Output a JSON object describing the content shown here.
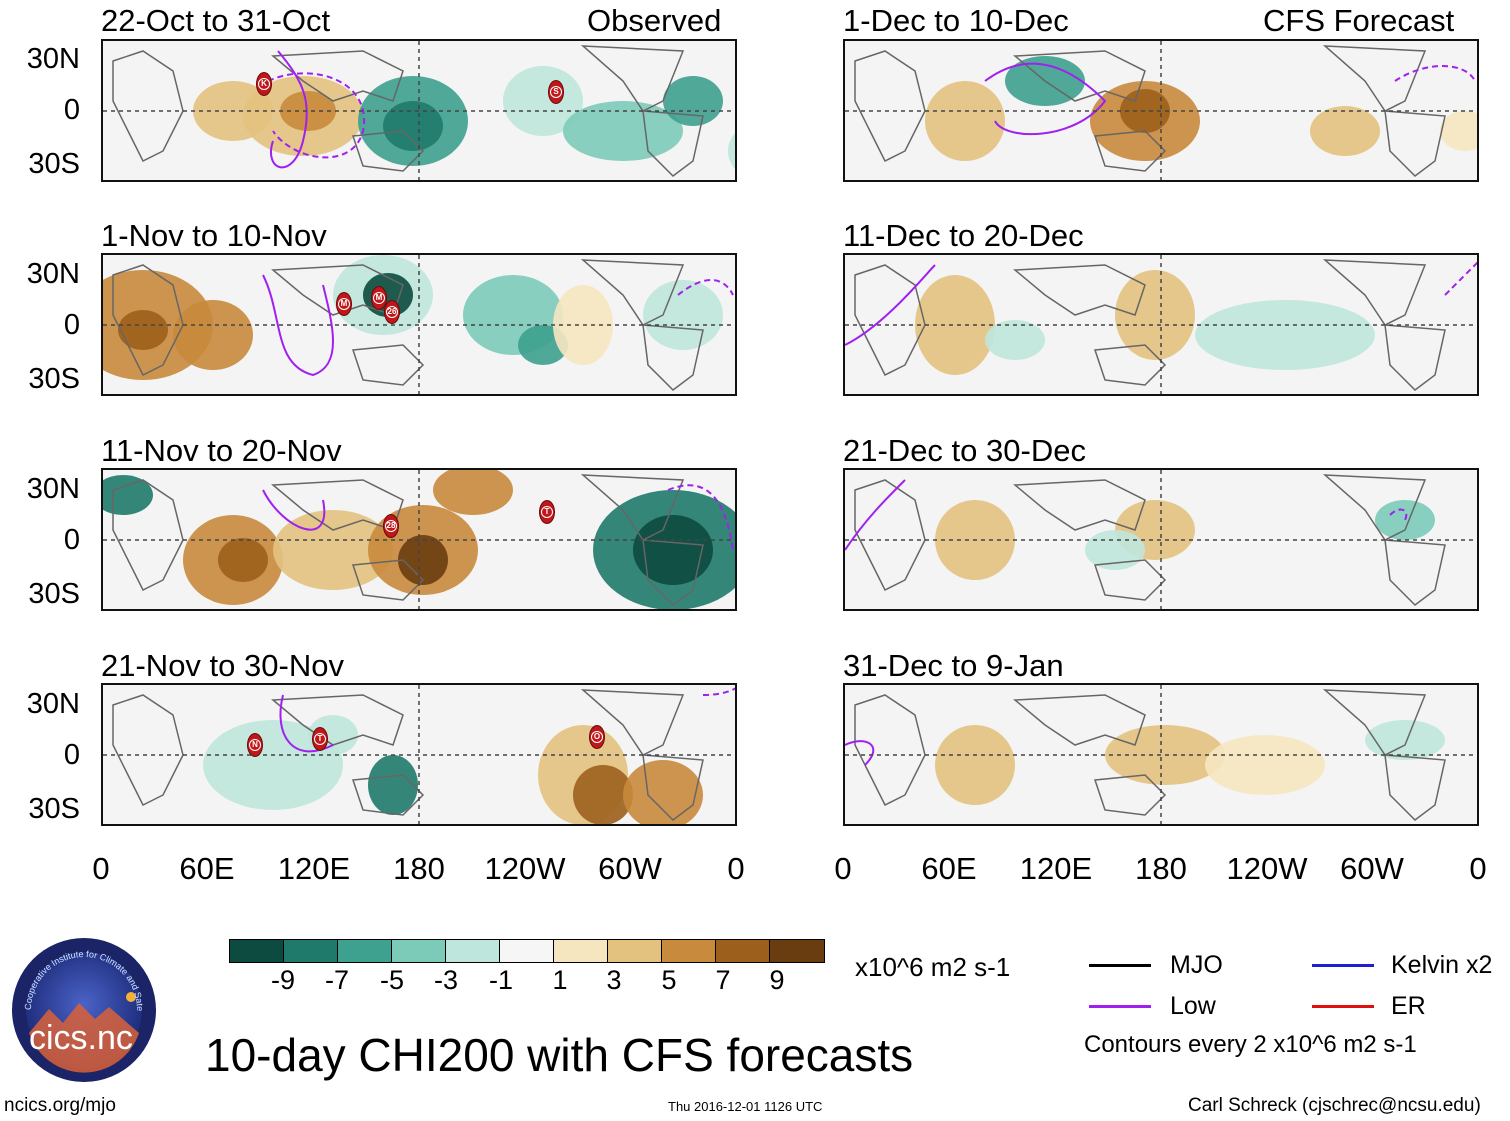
{
  "observed_label": "Observed",
  "forecast_label": "CFS Forecast",
  "lat_labels": [
    "30N",
    "0",
    "30S"
  ],
  "lon_labels": [
    "0",
    "60E",
    "120E",
    "180",
    "120W",
    "60W",
    "0"
  ],
  "panels_left": [
    {
      "title": "22-Oct to 31-Oct",
      "storms": [
        "K",
        "S"
      ]
    },
    {
      "title": "1-Nov to 10-Nov",
      "storms": [
        "M",
        "M",
        "26"
      ]
    },
    {
      "title": "11-Nov to 20-Nov",
      "storms": [
        "28",
        "T"
      ]
    },
    {
      "title": "21-Nov to 30-Nov",
      "storms": [
        "N",
        "T",
        "O"
      ]
    }
  ],
  "panels_right": [
    {
      "title": "1-Dec to 10-Dec"
    },
    {
      "title": "11-Dec to 20-Dec"
    },
    {
      "title": "21-Dec to 30-Dec"
    },
    {
      "title": "31-Dec to 9-Jan"
    }
  ],
  "colorbar": {
    "colors": [
      "#0d4a3f",
      "#1f7a6b",
      "#3ea08e",
      "#7ccbb9",
      "#bfe6dc",
      "#f6f6f6",
      "#f6e6c0",
      "#e3c27f",
      "#c88a3c",
      "#9c5f1c",
      "#6a3d10"
    ],
    "ticks": [
      "-9",
      "-7",
      "-5",
      "-3",
      "-1",
      "1",
      "3",
      "5",
      "7",
      "9"
    ],
    "unit": "x10^6 m2 s-1"
  },
  "legend": {
    "mjo": {
      "label": "MJO",
      "color": "#000000"
    },
    "low": {
      "label": "Low",
      "color": "#a020f0"
    },
    "kelvin": {
      "label": "Kelvin x2",
      "color": "#1f1fd0"
    },
    "er": {
      "label": "ER",
      "color": "#e01010"
    },
    "contours_note": "Contours every 2 x10^6 m2 s-1"
  },
  "logo_text": "cics.nc",
  "logo_ring": "Cooperative Institute for Climate and Satellites",
  "main_title": "10-day CHI200 with CFS forecasts",
  "footer": {
    "left": "ncics.org/mjo",
    "center": "Thu 2016-12-01 1126 UTC",
    "right": "Carl Schreck (cjschrec@ncsu.edu)"
  }
}
